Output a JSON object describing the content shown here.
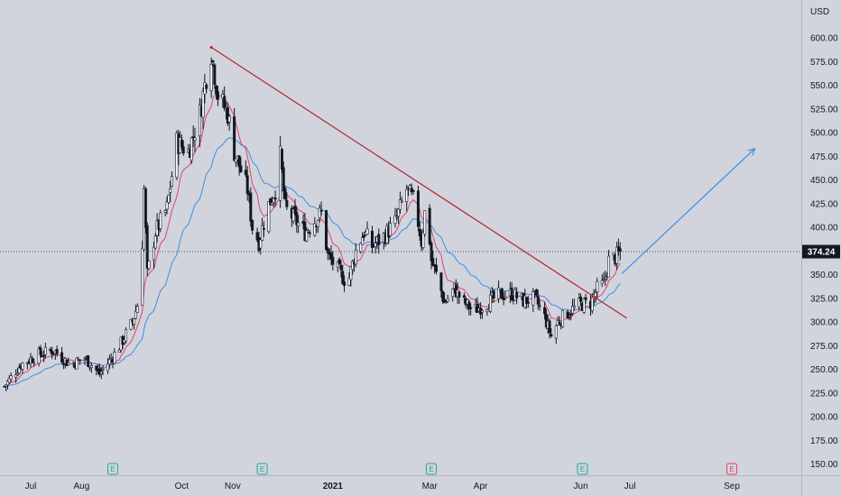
{
  "chart_data": {
    "type": "candlestick",
    "currency": "USD",
    "last_price": "374.24",
    "ylim": [
      140,
      615
    ],
    "y_ticks": [
      "150.00",
      "175.00",
      "200.00",
      "225.00",
      "250.00",
      "275.00",
      "300.00",
      "325.00",
      "350.00",
      "375.00",
      "400.00",
      "425.00",
      "450.00",
      "475.00",
      "500.00",
      "525.00",
      "550.00",
      "575.00",
      "600.00"
    ],
    "x_ticks": [
      {
        "label": "Jul",
        "date": "2020-07-01",
        "bold": false
      },
      {
        "label": "Aug",
        "date": "2020-08-01",
        "bold": false
      },
      {
        "label": "Oct",
        "date": "2020-10-01",
        "bold": false
      },
      {
        "label": "Nov",
        "date": "2020-11-01",
        "bold": false
      },
      {
        "label": "2021",
        "date": "2021-01-01",
        "bold": true
      },
      {
        "label": "Mar",
        "date": "2021-03-01",
        "bold": false
      },
      {
        "label": "Apr",
        "date": "2021-04-01",
        "bold": false
      },
      {
        "label": "Jun",
        "date": "2021-06-01",
        "bold": false
      },
      {
        "label": "Jul",
        "date": "2021-07-01",
        "bold": false
      },
      {
        "label": "Sep",
        "date": "2021-09-01",
        "bold": false
      }
    ],
    "earnings_markers": [
      {
        "label": "E",
        "date": "2020-08-20",
        "past": true
      },
      {
        "label": "E",
        "date": "2020-11-19",
        "past": true
      },
      {
        "label": "E",
        "date": "2021-03-02",
        "past": true
      },
      {
        "label": "E",
        "date": "2021-06-02",
        "past": true
      },
      {
        "label": "E",
        "date": "2021-09-01",
        "past": false
      }
    ],
    "price_path": [
      [
        "2020-06-15",
        232
      ],
      [
        "2020-06-25",
        255
      ],
      [
        "2020-07-05",
        265
      ],
      [
        "2020-07-15",
        270
      ],
      [
        "2020-07-25",
        255
      ],
      [
        "2020-08-03",
        262
      ],
      [
        "2020-08-12",
        245
      ],
      [
        "2020-08-22",
        268
      ],
      [
        "2020-09-01",
        300
      ],
      [
        "2020-09-06",
        330
      ],
      [
        "2020-09-08",
        440
      ],
      [
        "2020-09-10",
        350
      ],
      [
        "2020-09-15",
        395
      ],
      [
        "2020-09-22",
        420
      ],
      [
        "2020-09-28",
        490
      ],
      [
        "2020-10-05",
        480
      ],
      [
        "2020-10-12",
        520
      ],
      [
        "2020-10-16",
        560
      ],
      [
        "2020-10-19",
        585
      ],
      [
        "2020-10-23",
        540
      ],
      [
        "2020-10-29",
        520
      ],
      [
        "2020-11-02",
        480
      ],
      [
        "2020-11-05",
        465
      ],
      [
        "2020-11-10",
        440
      ],
      [
        "2020-11-13",
        400
      ],
      [
        "2020-11-17",
        385
      ],
      [
        "2020-11-22",
        420
      ],
      [
        "2020-11-27",
        440
      ],
      [
        "2020-11-30",
        475
      ],
      [
        "2020-12-03",
        420
      ],
      [
        "2020-12-08",
        410
      ],
      [
        "2020-12-15",
        395
      ],
      [
        "2020-12-20",
        405
      ],
      [
        "2020-12-25",
        415
      ],
      [
        "2020-12-29",
        370
      ],
      [
        "2021-01-04",
        355
      ],
      [
        "2021-01-10",
        340
      ],
      [
        "2021-01-15",
        375
      ],
      [
        "2021-01-20",
        395
      ],
      [
        "2021-01-25",
        380
      ],
      [
        "2021-02-01",
        390
      ],
      [
        "2021-02-08",
        405
      ],
      [
        "2021-02-15",
        440
      ],
      [
        "2021-02-20",
        425
      ],
      [
        "2021-02-24",
        385
      ],
      [
        "2021-02-27",
        430
      ],
      [
        "2021-03-02",
        365
      ],
      [
        "2021-03-06",
        345
      ],
      [
        "2021-03-10",
        320
      ],
      [
        "2021-03-16",
        335
      ],
      [
        "2021-03-22",
        320
      ],
      [
        "2021-03-28",
        312
      ],
      [
        "2021-04-05",
        320
      ],
      [
        "2021-04-12",
        328
      ],
      [
        "2021-04-20",
        330
      ],
      [
        "2021-04-27",
        322
      ],
      [
        "2021-05-04",
        325
      ],
      [
        "2021-05-10",
        305
      ],
      [
        "2021-05-14",
        285
      ],
      [
        "2021-05-18",
        300
      ],
      [
        "2021-05-24",
        310
      ],
      [
        "2021-05-31",
        318
      ],
      [
        "2021-06-07",
        320
      ],
      [
        "2021-06-11",
        335
      ],
      [
        "2021-06-15",
        340
      ],
      [
        "2021-06-18",
        365
      ],
      [
        "2021-06-22",
        368
      ],
      [
        "2021-06-25",
        374
      ]
    ],
    "series": [
      {
        "color": "#e0436a",
        "type": "moving-average"
      },
      {
        "color": "#3f8fe0",
        "type": "moving-average"
      }
    ],
    "overlays": {
      "trendline": {
        "color": "#b4232f",
        "from": [
          "2020-10-19",
          590
        ],
        "to": [
          "2021-06-29",
          304
        ]
      },
      "projection_arrow": {
        "color": "#3f8fe0",
        "from": [
          "2021-06-26",
          351
        ],
        "to": [
          "2021-09-15",
          483
        ]
      },
      "last_price_line": {
        "value": 374.24,
        "color": "#555a66"
      }
    },
    "grid": false,
    "legend": "none"
  }
}
